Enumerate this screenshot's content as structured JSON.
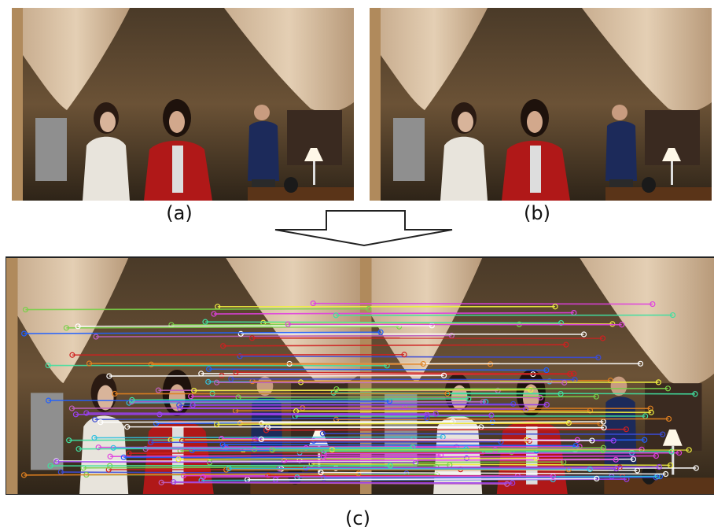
{
  "figure": {
    "labels": {
      "a": "(a)",
      "b": "(b)",
      "c": "(c)"
    }
  }
}
